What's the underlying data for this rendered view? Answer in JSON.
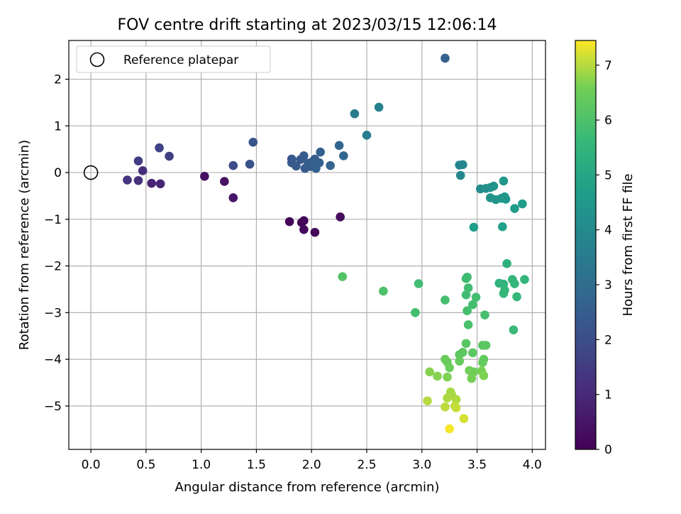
{
  "chart_data": {
    "type": "scatter",
    "title": "FOV centre drift starting at 2023/03/15 12:06:14",
    "xlabel": "Angular distance from reference (arcmin)",
    "ylabel": "Rotation from reference (arcmin)",
    "xlim": [
      -0.2,
      4.12
    ],
    "ylim": [
      -5.93,
      2.83
    ],
    "xticks": [
      "0.0",
      "0.5",
      "1.0",
      "1.5",
      "2.0",
      "2.5",
      "3.0",
      "3.5",
      "4.0"
    ],
    "xtick_values": [
      0,
      0.5,
      1,
      1.5,
      2,
      2.5,
      3,
      3.5,
      4
    ],
    "yticks": [
      "2",
      "1",
      "0",
      "−1",
      "−2",
      "−3",
      "−4",
      "−5"
    ],
    "ytick_values": [
      2,
      1,
      0,
      -1,
      -2,
      -3,
      -4,
      -5
    ],
    "grid": true,
    "legend": {
      "position": "upper-left",
      "entries": [
        "Reference platepar"
      ]
    },
    "reference_point": {
      "x": 0,
      "y": 0,
      "style": "open-circle"
    },
    "colorbar": {
      "label": "Hours from first FF file",
      "colormap": "viridis",
      "range": [
        0,
        7.45
      ],
      "ticks": [
        "0",
        "1",
        "2",
        "3",
        "4",
        "5",
        "6",
        "7"
      ],
      "tick_values": [
        0,
        1,
        2,
        3,
        4,
        5,
        6,
        7
      ]
    },
    "points": [
      {
        "x": 1.8,
        "y": -1.05,
        "h": 0.05
      },
      {
        "x": 1.91,
        "y": -1.07,
        "h": 0.1
      },
      {
        "x": 1.93,
        "y": -1.03,
        "h": 0.12
      },
      {
        "x": 1.93,
        "y": -1.22,
        "h": 0.15
      },
      {
        "x": 2.03,
        "y": -1.28,
        "h": 0.2
      },
      {
        "x": 2.26,
        "y": -0.95,
        "h": 0.25
      },
      {
        "x": 1.03,
        "y": -0.08,
        "h": 0.4
      },
      {
        "x": 1.21,
        "y": -0.19,
        "h": 0.45
      },
      {
        "x": 1.29,
        "y": -0.54,
        "h": 0.55
      },
      {
        "x": 0.55,
        "y": -0.23,
        "h": 0.85
      },
      {
        "x": 0.63,
        "y": -0.24,
        "h": 0.9
      },
      {
        "x": 0.47,
        "y": 0.04,
        "h": 1.1
      },
      {
        "x": 0.43,
        "y": -0.17,
        "h": 1.2
      },
      {
        "x": 0.33,
        "y": -0.16,
        "h": 1.3
      },
      {
        "x": 0.43,
        "y": 0.25,
        "h": 1.5
      },
      {
        "x": 0.62,
        "y": 0.53,
        "h": 1.7
      },
      {
        "x": 0.71,
        "y": 0.35,
        "h": 1.6
      },
      {
        "x": 1.29,
        "y": 0.15,
        "h": 2.0
      },
      {
        "x": 1.44,
        "y": 0.18,
        "h": 2.15
      },
      {
        "x": 1.47,
        "y": 0.65,
        "h": 2.2
      },
      {
        "x": 1.82,
        "y": 0.29,
        "h": 2.3
      },
      {
        "x": 1.82,
        "y": 0.21,
        "h": 2.35
      },
      {
        "x": 1.86,
        "y": 0.14,
        "h": 2.4
      },
      {
        "x": 1.9,
        "y": 0.28,
        "h": 2.4
      },
      {
        "x": 1.93,
        "y": 0.36,
        "h": 2.45
      },
      {
        "x": 1.94,
        "y": 0.09,
        "h": 2.45
      },
      {
        "x": 1.97,
        "y": 0.2,
        "h": 2.5
      },
      {
        "x": 1.99,
        "y": 0.13,
        "h": 2.5
      },
      {
        "x": 2.01,
        "y": 0.24,
        "h": 2.55
      },
      {
        "x": 2.03,
        "y": 0.29,
        "h": 2.55
      },
      {
        "x": 2.04,
        "y": 0.09,
        "h": 2.6
      },
      {
        "x": 2.07,
        "y": 0.21,
        "h": 2.6
      },
      {
        "x": 2.08,
        "y": 0.44,
        "h": 2.65
      },
      {
        "x": 2.17,
        "y": 0.15,
        "h": 2.7
      },
      {
        "x": 2.25,
        "y": 0.58,
        "h": 2.75
      },
      {
        "x": 2.29,
        "y": 0.36,
        "h": 2.8
      },
      {
        "x": 3.21,
        "y": 2.45,
        "h": 2.6
      },
      {
        "x": 2.39,
        "y": 1.26,
        "h": 3.5
      },
      {
        "x": 2.5,
        "y": 0.8,
        "h": 3.6
      },
      {
        "x": 2.61,
        "y": 1.4,
        "h": 3.7
      },
      {
        "x": 3.34,
        "y": 0.16,
        "h": 3.8
      },
      {
        "x": 3.37,
        "y": 0.17,
        "h": 3.85
      },
      {
        "x": 3.35,
        "y": -0.06,
        "h": 3.9
      },
      {
        "x": 3.53,
        "y": -0.35,
        "h": 4.1
      },
      {
        "x": 3.58,
        "y": -0.34,
        "h": 4.2
      },
      {
        "x": 3.62,
        "y": -0.32,
        "h": 4.25
      },
      {
        "x": 3.65,
        "y": -0.29,
        "h": 4.3
      },
      {
        "x": 3.62,
        "y": -0.54,
        "h": 4.3
      },
      {
        "x": 3.67,
        "y": -0.58,
        "h": 4.35
      },
      {
        "x": 3.72,
        "y": -0.55,
        "h": 4.4
      },
      {
        "x": 3.75,
        "y": -0.52,
        "h": 4.4
      },
      {
        "x": 3.76,
        "y": -0.57,
        "h": 4.45
      },
      {
        "x": 3.74,
        "y": -0.18,
        "h": 4.45
      },
      {
        "x": 3.84,
        "y": -0.77,
        "h": 4.6
      },
      {
        "x": 3.91,
        "y": -0.67,
        "h": 4.65
      },
      {
        "x": 3.47,
        "y": -1.17,
        "h": 4.7
      },
      {
        "x": 3.73,
        "y": -1.16,
        "h": 4.75
      },
      {
        "x": 3.77,
        "y": -1.95,
        "h": 5.3
      },
      {
        "x": 3.7,
        "y": -2.37,
        "h": 5.4
      },
      {
        "x": 3.74,
        "y": -2.39,
        "h": 5.45
      },
      {
        "x": 3.82,
        "y": -2.29,
        "h": 5.5
      },
      {
        "x": 3.84,
        "y": -2.38,
        "h": 5.5
      },
      {
        "x": 3.75,
        "y": -2.52,
        "h": 5.55
      },
      {
        "x": 3.74,
        "y": -2.59,
        "h": 5.6
      },
      {
        "x": 3.86,
        "y": -2.66,
        "h": 5.6
      },
      {
        "x": 3.93,
        "y": -2.29,
        "h": 5.5
      },
      {
        "x": 3.83,
        "y": -3.37,
        "h": 5.65
      },
      {
        "x": 3.4,
        "y": -2.27,
        "h": 5.75
      },
      {
        "x": 3.41,
        "y": -2.24,
        "h": 5.75
      },
      {
        "x": 3.42,
        "y": -2.47,
        "h": 5.8
      },
      {
        "x": 3.4,
        "y": -2.62,
        "h": 5.8
      },
      {
        "x": 3.49,
        "y": -2.67,
        "h": 5.85
      },
      {
        "x": 3.46,
        "y": -2.83,
        "h": 5.85
      },
      {
        "x": 3.41,
        "y": -2.96,
        "h": 5.9
      },
      {
        "x": 3.57,
        "y": -3.05,
        "h": 5.9
      },
      {
        "x": 3.42,
        "y": -3.26,
        "h": 5.95
      },
      {
        "x": 2.97,
        "y": -2.38,
        "h": 5.8
      },
      {
        "x": 2.94,
        "y": -3.0,
        "h": 5.85
      },
      {
        "x": 3.21,
        "y": -2.73,
        "h": 5.9
      },
      {
        "x": 2.65,
        "y": -2.54,
        "h": 6.0
      },
      {
        "x": 2.28,
        "y": -2.23,
        "h": 6.1
      },
      {
        "x": 3.4,
        "y": -3.66,
        "h": 6.2
      },
      {
        "x": 3.55,
        "y": -3.7,
        "h": 6.2
      },
      {
        "x": 3.58,
        "y": -3.7,
        "h": 6.25
      },
      {
        "x": 3.46,
        "y": -3.86,
        "h": 6.25
      },
      {
        "x": 3.37,
        "y": -3.85,
        "h": 6.3
      },
      {
        "x": 3.34,
        "y": -3.9,
        "h": 6.3
      },
      {
        "x": 3.56,
        "y": -4.0,
        "h": 6.35
      },
      {
        "x": 3.55,
        "y": -4.07,
        "h": 6.4
      },
      {
        "x": 3.34,
        "y": -4.04,
        "h": 6.4
      },
      {
        "x": 3.21,
        "y": -4.0,
        "h": 6.45
      },
      {
        "x": 3.23,
        "y": -4.06,
        "h": 6.45
      },
      {
        "x": 3.25,
        "y": -4.18,
        "h": 6.5
      },
      {
        "x": 3.43,
        "y": -4.24,
        "h": 6.55
      },
      {
        "x": 3.47,
        "y": -4.27,
        "h": 6.55
      },
      {
        "x": 3.45,
        "y": -4.41,
        "h": 6.6
      },
      {
        "x": 3.54,
        "y": -4.25,
        "h": 6.6
      },
      {
        "x": 3.56,
        "y": -4.35,
        "h": 6.65
      },
      {
        "x": 3.23,
        "y": -4.38,
        "h": 6.65
      },
      {
        "x": 3.14,
        "y": -4.36,
        "h": 6.7
      },
      {
        "x": 3.07,
        "y": -4.27,
        "h": 6.7
      },
      {
        "x": 3.26,
        "y": -4.7,
        "h": 6.9
      },
      {
        "x": 3.27,
        "y": -4.76,
        "h": 6.9
      },
      {
        "x": 3.23,
        "y": -4.83,
        "h": 6.95
      },
      {
        "x": 3.31,
        "y": -4.86,
        "h": 6.95
      },
      {
        "x": 3.05,
        "y": -4.89,
        "h": 7.0
      },
      {
        "x": 3.21,
        "y": -5.02,
        "h": 7.05
      },
      {
        "x": 3.3,
        "y": -5.0,
        "h": 7.05
      },
      {
        "x": 3.31,
        "y": -5.04,
        "h": 7.1
      },
      {
        "x": 3.38,
        "y": -5.27,
        "h": 7.2
      },
      {
        "x": 3.25,
        "y": -5.49,
        "h": 7.4
      }
    ]
  }
}
